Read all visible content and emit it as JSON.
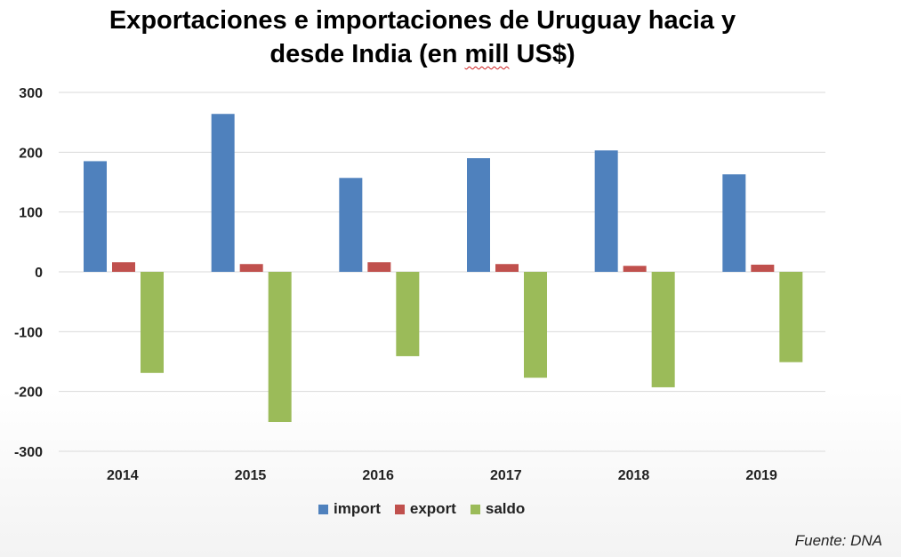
{
  "chart_data": {
    "type": "bar",
    "title_line1": "Exportaciones e importaciones de Uruguay hacia y",
    "title_line2_pre": "desde India (en ",
    "title_line2_squig": "mill",
    "title_line2_post": " US$)",
    "categories": [
      "2014",
      "2015",
      "2016",
      "2017",
      "2018",
      "2019"
    ],
    "series": [
      {
        "name": "import",
        "color": "#4f81bd",
        "values": [
          185,
          264,
          157,
          190,
          203,
          163
        ]
      },
      {
        "name": "export",
        "color": "#c0504d",
        "values": [
          16,
          13,
          16,
          13,
          10,
          12
        ]
      },
      {
        "name": "saldo",
        "color": "#9bbb59",
        "values": [
          -169,
          -251,
          -141,
          -177,
          -193,
          -151
        ]
      }
    ],
    "ylim": [
      -300,
      300
    ],
    "yticks": [
      300,
      200,
      100,
      0,
      -100,
      -200,
      -300
    ],
    "grid": true,
    "legend_position": "bottom",
    "source": "Fuente: DNA"
  }
}
